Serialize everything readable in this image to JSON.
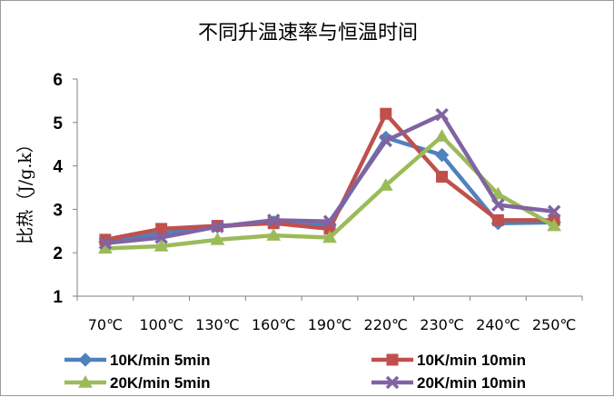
{
  "chart_data": {
    "type": "line",
    "title": "不同升温速率与恒温时间",
    "xlabel": "",
    "ylabel": "比热（J/g.k）",
    "categories": [
      "70℃",
      "100℃",
      "130℃",
      "160℃",
      "190℃",
      "220℃",
      "230℃",
      "240℃",
      "250℃"
    ],
    "ylim": [
      1,
      6
    ],
    "yticks": [
      1,
      2,
      3,
      4,
      5,
      6
    ],
    "grid": false,
    "legend_position": "bottom",
    "series": [
      {
        "name": "10K/min 5min",
        "color": "#4f81bd",
        "marker": "diamond",
        "values": [
          2.25,
          2.45,
          2.6,
          2.7,
          2.65,
          4.65,
          4.25,
          2.68,
          2.7
        ]
      },
      {
        "name": "10K/min 10min",
        "color": "#c0504d",
        "marker": "square",
        "values": [
          2.3,
          2.55,
          2.62,
          2.68,
          2.55,
          5.2,
          3.75,
          2.75,
          2.75
        ]
      },
      {
        "name": "20K/min 5min",
        "color": "#9bbb59",
        "marker": "triangle",
        "values": [
          2.1,
          2.15,
          2.3,
          2.4,
          2.35,
          3.55,
          4.68,
          3.35,
          2.62
        ]
      },
      {
        "name": "20K/min 10min",
        "color": "#8064a2",
        "marker": "x",
        "values": [
          2.22,
          2.35,
          2.6,
          2.75,
          2.72,
          4.58,
          5.18,
          3.1,
          2.95
        ]
      }
    ]
  }
}
